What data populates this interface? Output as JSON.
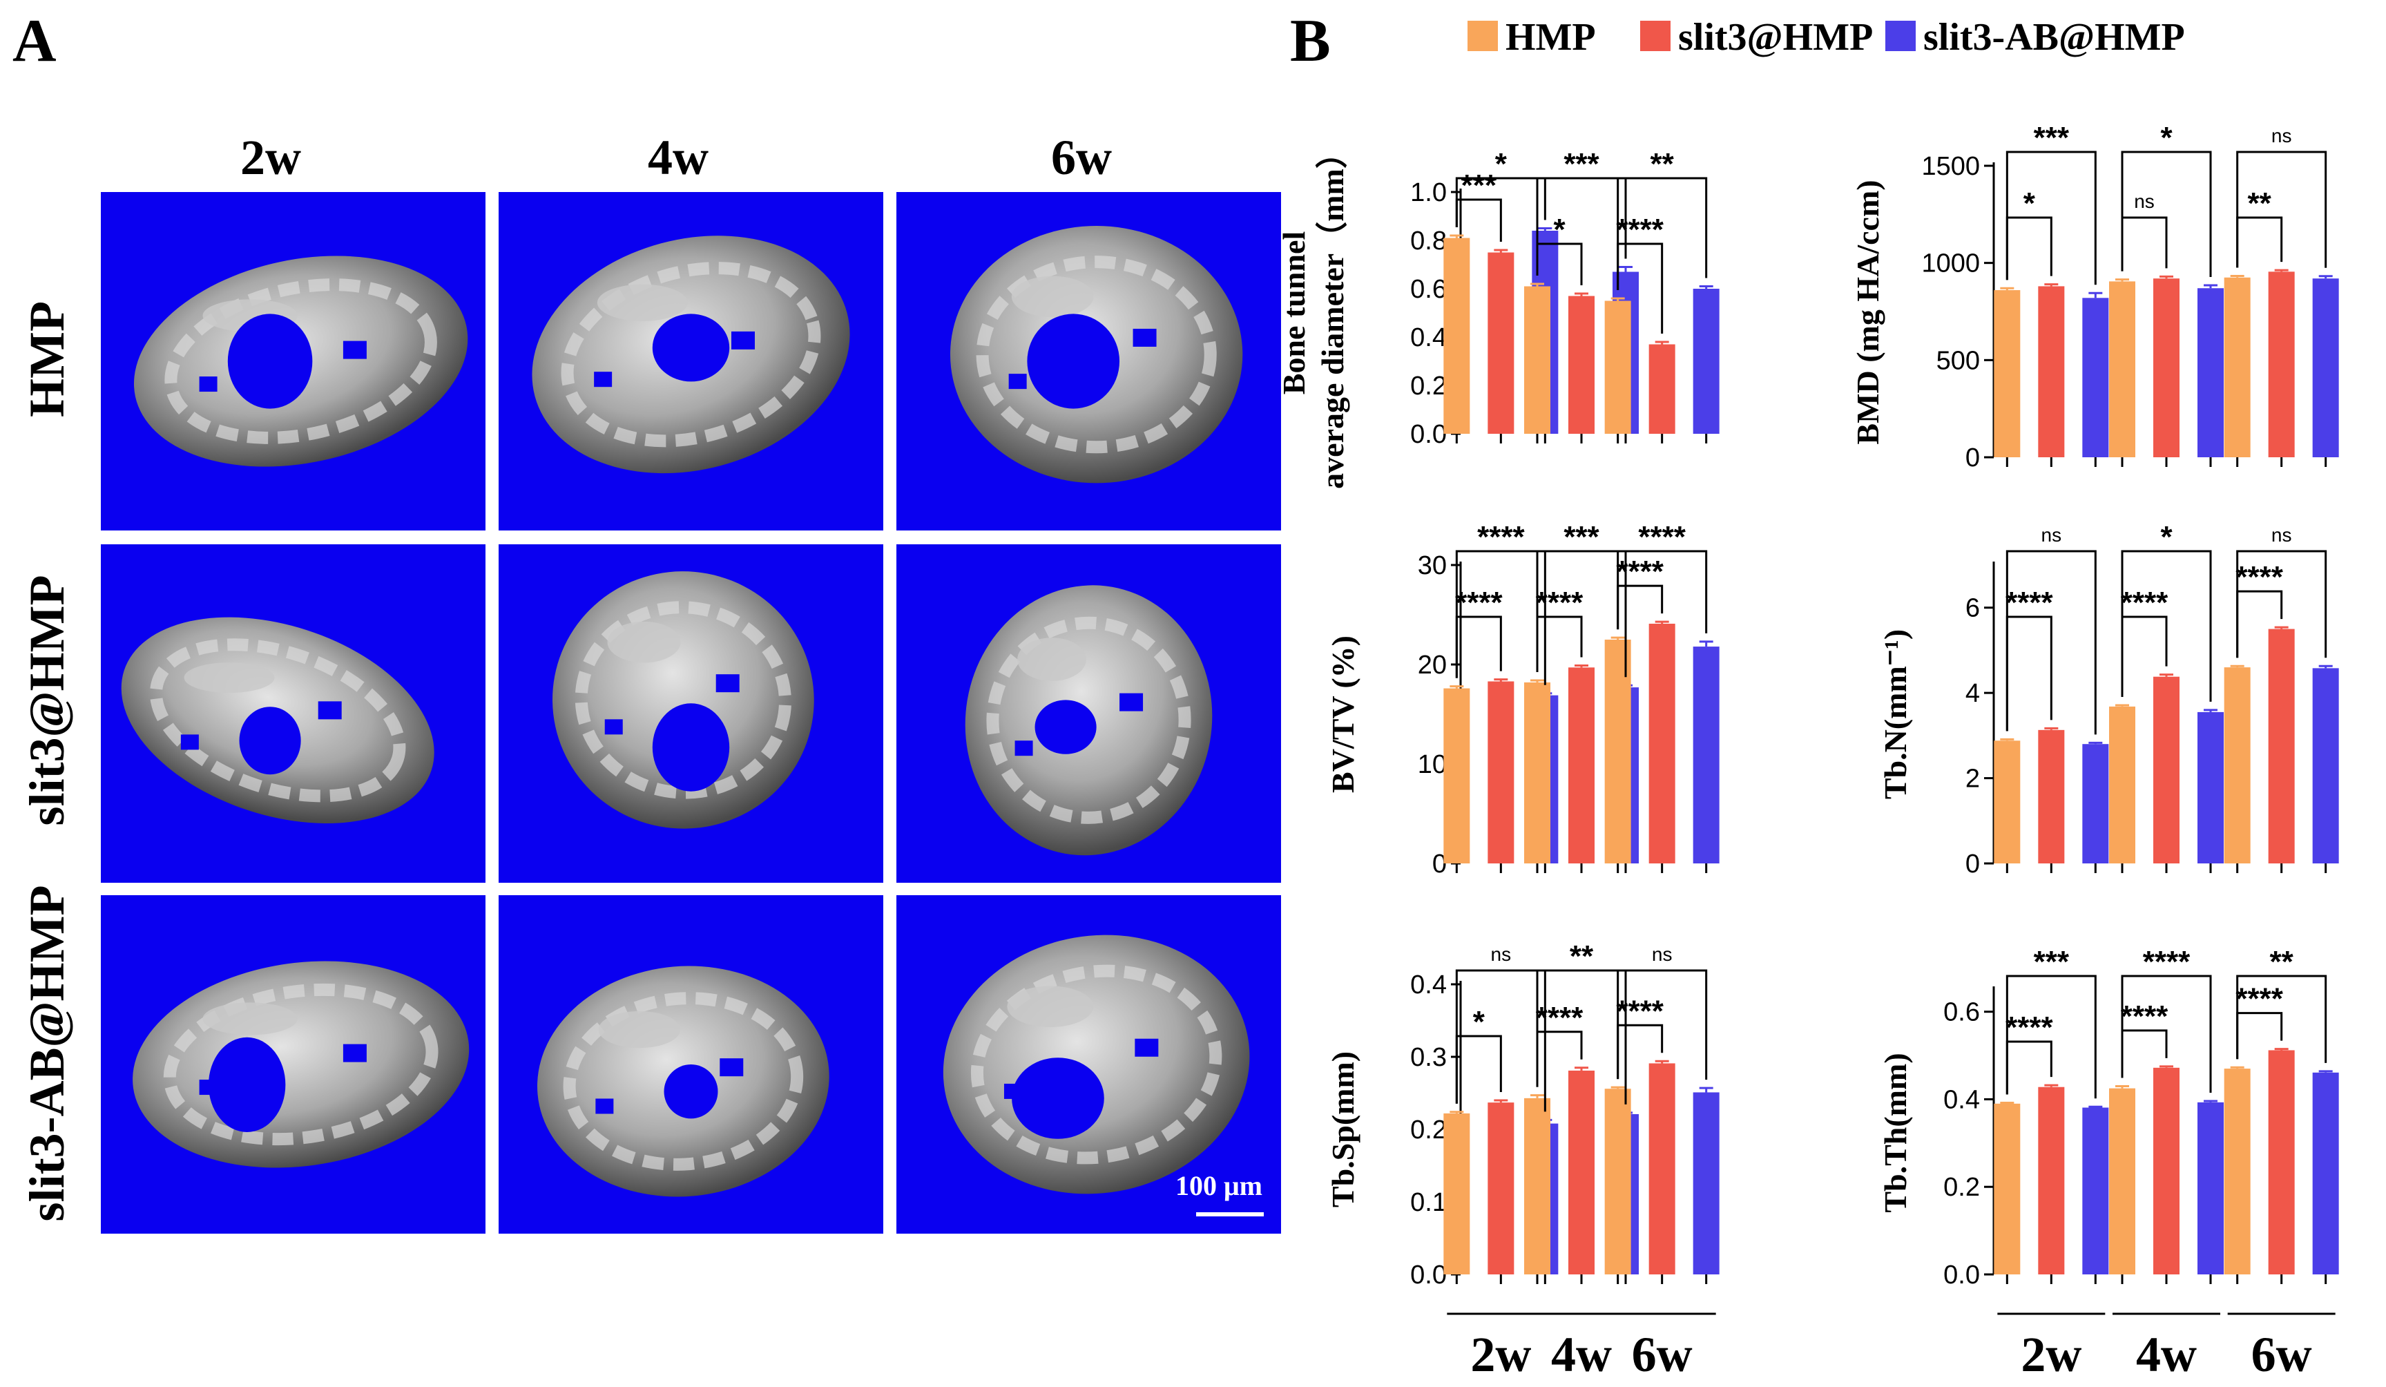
{
  "panel_labels": [
    "A",
    "B"
  ],
  "panel_a": {
    "column_labels": [
      "2w",
      "4w",
      "6w"
    ],
    "row_labels": [
      "HMP",
      "slit3@HMP",
      "slit3-AB@HMP"
    ],
    "scale_bar": "100 μm",
    "tile_color": "#0a00f0"
  },
  "legend": [
    {
      "name": "HMP",
      "color": "#f9a65a"
    },
    {
      "name": "slit3@HMP",
      "color": "#f0574a"
    },
    {
      "name": "slit3-AB@HMP",
      "color": "#4b3ee8"
    }
  ],
  "chart_data": [
    {
      "type": "bar",
      "ylabel": [
        "Bone tunnel",
        "average diameter（mm）"
      ],
      "categories": [
        "2w",
        "4w",
        "6w"
      ],
      "ylim": [
        0,
        1.0
      ],
      "ticks": [
        "0.0",
        "0.2",
        "0.4",
        "0.6",
        "0.8",
        "1.0"
      ],
      "series": [
        {
          "name": "HMP",
          "values": [
            0.81,
            0.61,
            0.55
          ],
          "errors": [
            0.01,
            0.01,
            0.01
          ]
        },
        {
          "name": "slit3@HMP",
          "values": [
            0.75,
            0.57,
            0.37
          ],
          "errors": [
            0.01,
            0.01,
            0.01
          ]
        },
        {
          "name": "slit3-AB@HMP",
          "values": [
            0.84,
            0.67,
            0.6
          ],
          "errors": [
            0.01,
            0.02,
            0.01
          ]
        }
      ],
      "significance": [
        {
          "group": 0,
          "from": 0,
          "to": 1,
          "label": "***"
        },
        {
          "group": 0,
          "from": 0,
          "to": 2,
          "label": "*"
        },
        {
          "group": 1,
          "from": 0,
          "to": 1,
          "label": "*"
        },
        {
          "group": 1,
          "from": 0,
          "to": 2,
          "label": "***"
        },
        {
          "group": 2,
          "from": 0,
          "to": 1,
          "label": "****"
        },
        {
          "group": 2,
          "from": 0,
          "to": 2,
          "label": "**"
        }
      ]
    },
    {
      "type": "bar",
      "ylabel": [
        "BMD (mg HA/ccm)"
      ],
      "categories": [
        "2w",
        "4w",
        "6w"
      ],
      "ylim": [
        0,
        1500
      ],
      "ticks": [
        "0",
        "500",
        "1000",
        "1500"
      ],
      "series": [
        {
          "name": "HMP",
          "values": [
            860,
            905,
            925
          ],
          "errors": [
            10,
            10,
            8
          ]
        },
        {
          "name": "slit3@HMP",
          "values": [
            880,
            920,
            955
          ],
          "errors": [
            10,
            10,
            8
          ]
        },
        {
          "name": "slit3-AB@HMP",
          "values": [
            820,
            870,
            920
          ],
          "errors": [
            25,
            15,
            12
          ]
        }
      ],
      "significance": [
        {
          "group": 0,
          "from": 0,
          "to": 1,
          "label": "*"
        },
        {
          "group": 0,
          "from": 0,
          "to": 2,
          "label": "***"
        },
        {
          "group": 1,
          "from": 0,
          "to": 1,
          "label": "ns"
        },
        {
          "group": 1,
          "from": 0,
          "to": 2,
          "label": "*"
        },
        {
          "group": 2,
          "from": 0,
          "to": 1,
          "label": "**"
        },
        {
          "group": 2,
          "from": 0,
          "to": 2,
          "label": "ns"
        }
      ]
    },
    {
      "type": "bar",
      "ylabel": [
        "BV/TV (%)"
      ],
      "categories": [
        "2w",
        "4w",
        "6w"
      ],
      "ylim": [
        0,
        30
      ],
      "ticks": [
        "0",
        "10",
        "20",
        "30"
      ],
      "series": [
        {
          "name": "HMP",
          "values": [
            17.6,
            18.2,
            22.5
          ],
          "errors": [
            0.2,
            0.2,
            0.2
          ]
        },
        {
          "name": "slit3@HMP",
          "values": [
            18.3,
            19.7,
            24.1
          ],
          "errors": [
            0.2,
            0.2,
            0.2
          ]
        },
        {
          "name": "slit3-AB@HMP",
          "values": [
            16.9,
            17.7,
            21.8
          ],
          "errors": [
            0.2,
            0.2,
            0.5
          ]
        }
      ],
      "significance": [
        {
          "group": 0,
          "from": 0,
          "to": 1,
          "label": "****"
        },
        {
          "group": 0,
          "from": 0,
          "to": 2,
          "label": "****"
        },
        {
          "group": 1,
          "from": 0,
          "to": 1,
          "label": "****"
        },
        {
          "group": 1,
          "from": 0,
          "to": 2,
          "label": "***"
        },
        {
          "group": 2,
          "from": 0,
          "to": 1,
          "label": "****"
        },
        {
          "group": 2,
          "from": 0,
          "to": 2,
          "label": "****"
        }
      ]
    },
    {
      "type": "bar",
      "ylabel": [
        "Tb.N(mm⁻¹)"
      ],
      "categories": [
        "2w",
        "4w",
        "6w"
      ],
      "ylim": [
        0,
        7
      ],
      "ticks": [
        "0",
        "2",
        "4",
        "6"
      ],
      "series": [
        {
          "name": "HMP",
          "values": [
            2.88,
            3.68,
            4.6
          ],
          "errors": [
            0.03,
            0.03,
            0.03
          ]
        },
        {
          "name": "slit3@HMP",
          "values": [
            3.13,
            4.38,
            5.5
          ],
          "errors": [
            0.04,
            0.05,
            0.04
          ]
        },
        {
          "name": "slit3-AB@HMP",
          "values": [
            2.8,
            3.55,
            4.58
          ],
          "errors": [
            0.03,
            0.05,
            0.05
          ]
        }
      ],
      "significance": [
        {
          "group": 0,
          "from": 0,
          "to": 1,
          "label": "****"
        },
        {
          "group": 0,
          "from": 0,
          "to": 2,
          "label": "ns"
        },
        {
          "group": 1,
          "from": 0,
          "to": 1,
          "label": "****"
        },
        {
          "group": 1,
          "from": 0,
          "to": 2,
          "label": "*"
        },
        {
          "group": 2,
          "from": 0,
          "to": 1,
          "label": "****"
        },
        {
          "group": 2,
          "from": 0,
          "to": 2,
          "label": "ns"
        }
      ]
    },
    {
      "type": "bar",
      "ylabel": [
        "Tb.Sp(mm)"
      ],
      "categories": [
        "2w",
        "4w",
        "6w"
      ],
      "ylim": [
        0,
        0.4
      ],
      "ticks": [
        "0.0",
        "0.1",
        "0.2",
        "0.3",
        "0.4"
      ],
      "series": [
        {
          "name": "HMP",
          "values": [
            0.222,
            0.243,
            0.256
          ],
          "errors": [
            0.002,
            0.004,
            0.002
          ]
        },
        {
          "name": "slit3@HMP",
          "values": [
            0.237,
            0.281,
            0.291
          ],
          "errors": [
            0.003,
            0.004,
            0.003
          ]
        },
        {
          "name": "slit3-AB@HMP",
          "values": [
            0.208,
            0.221,
            0.251
          ],
          "errors": [
            0.005,
            0.002,
            0.006
          ]
        }
      ],
      "significance": [
        {
          "group": 0,
          "from": 0,
          "to": 1,
          "label": "*"
        },
        {
          "group": 0,
          "from": 0,
          "to": 2,
          "label": "ns"
        },
        {
          "group": 1,
          "from": 0,
          "to": 1,
          "label": "****"
        },
        {
          "group": 1,
          "from": 0,
          "to": 2,
          "label": "**"
        },
        {
          "group": 2,
          "from": 0,
          "to": 1,
          "label": "****"
        },
        {
          "group": 2,
          "from": 0,
          "to": 2,
          "label": "ns"
        }
      ]
    },
    {
      "type": "bar",
      "ylabel": [
        "Tb.Th(mm)"
      ],
      "categories": [
        "2w",
        "4w",
        "6w"
      ],
      "ylim": [
        0,
        0.65
      ],
      "ticks": [
        "0.0",
        "0.2",
        "0.4",
        "0.6"
      ],
      "series": [
        {
          "name": "HMP",
          "values": [
            0.39,
            0.425,
            0.47
          ],
          "errors": [
            0.002,
            0.005,
            0.003
          ]
        },
        {
          "name": "slit3@HMP",
          "values": [
            0.428,
            0.472,
            0.512
          ],
          "errors": [
            0.004,
            0.003,
            0.003
          ]
        },
        {
          "name": "slit3-AB@HMP",
          "values": [
            0.381,
            0.393,
            0.461
          ],
          "errors": [
            0.002,
            0.003,
            0.003
          ]
        }
      ],
      "significance": [
        {
          "group": 0,
          "from": 0,
          "to": 1,
          "label": "****"
        },
        {
          "group": 0,
          "from": 0,
          "to": 2,
          "label": "***"
        },
        {
          "group": 1,
          "from": 0,
          "to": 1,
          "label": "****"
        },
        {
          "group": 1,
          "from": 0,
          "to": 2,
          "label": "****"
        },
        {
          "group": 2,
          "from": 0,
          "to": 1,
          "label": "****"
        },
        {
          "group": 2,
          "from": 0,
          "to": 2,
          "label": "**"
        }
      ]
    }
  ]
}
